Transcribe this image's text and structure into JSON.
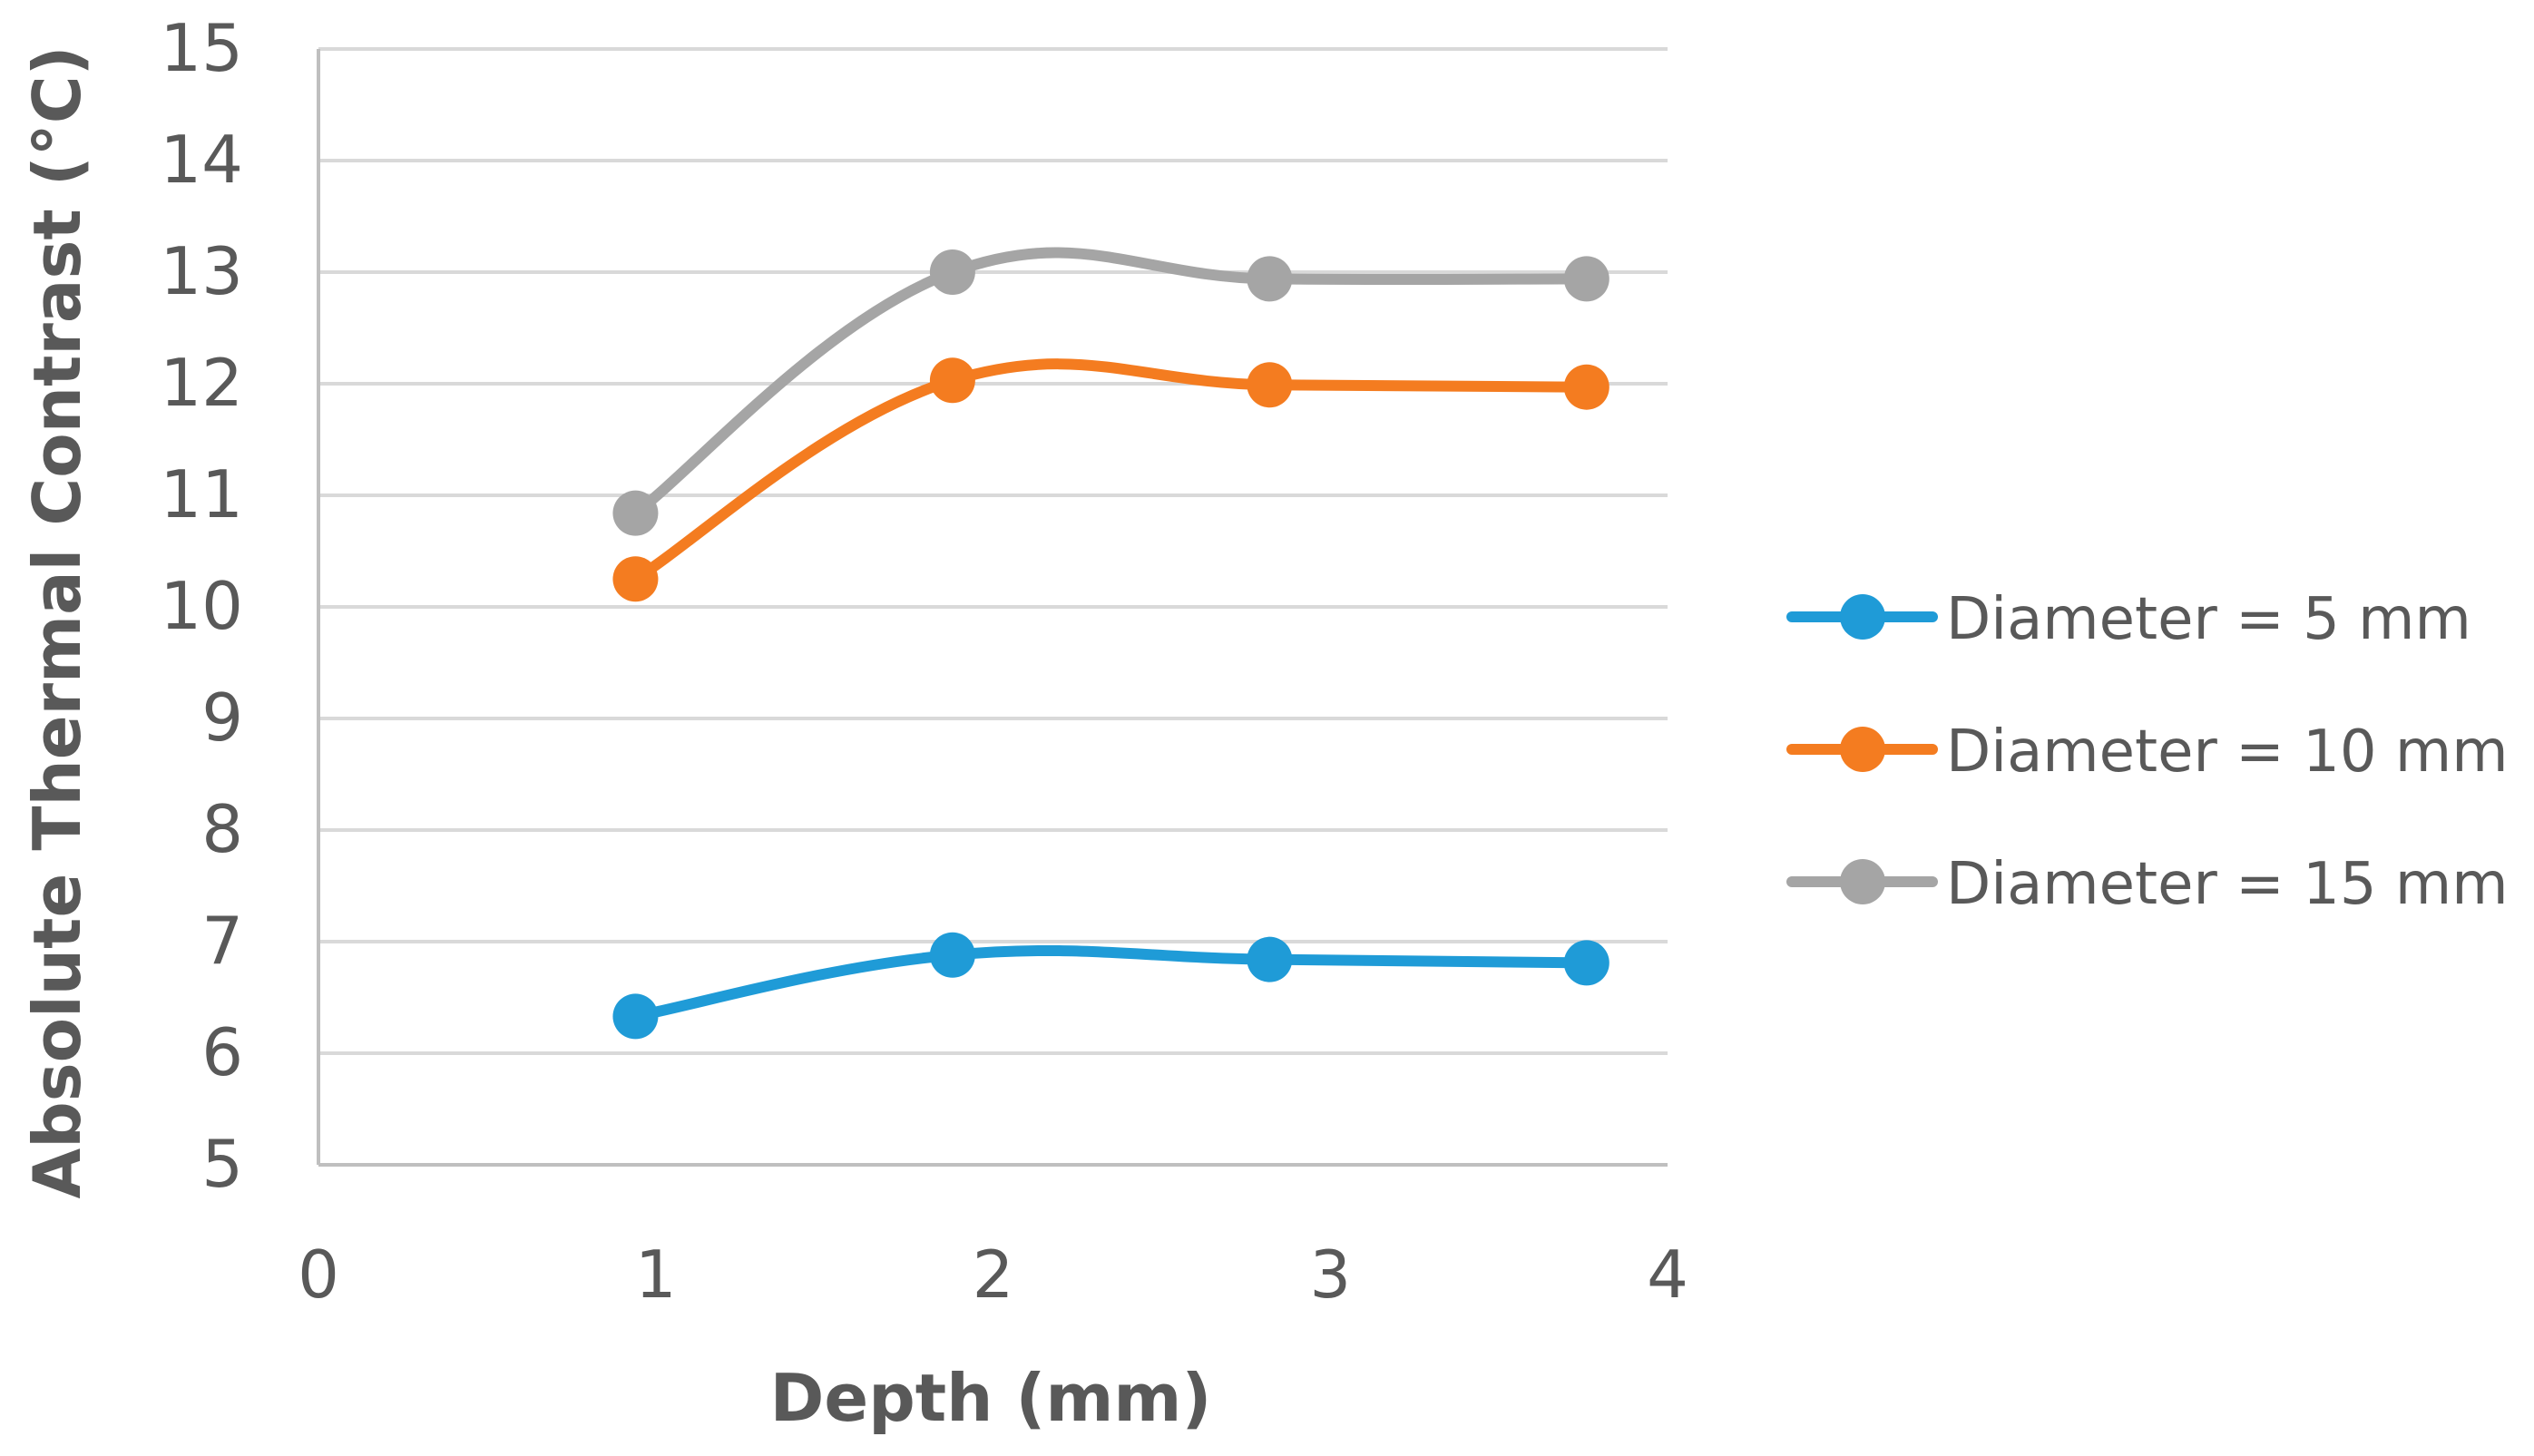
{
  "chart_data": {
    "type": "line",
    "smooth": true,
    "title": "",
    "xlabel": "Depth (mm)",
    "ylabel": "Absolute Thermal Contrast (°C)",
    "xlim": [
      0,
      4
    ],
    "ylim": [
      5,
      15
    ],
    "xticks": [
      "0",
      "1",
      "2",
      "3",
      "4"
    ],
    "yticks": [
      "5",
      "6",
      "7",
      "8",
      "9",
      "10",
      "11",
      "12",
      "13",
      "14",
      "15"
    ],
    "grid": true,
    "legend_position": "right",
    "series": [
      {
        "name": "Diameter = 5 mm",
        "color": "#1f9bd7",
        "x": [
          0.94,
          1.88,
          2.82,
          3.76
        ],
        "y": [
          6.33,
          6.88,
          6.84,
          6.81
        ]
      },
      {
        "name": "Diameter = 10 mm",
        "color": "#f47c20",
        "x": [
          0.94,
          1.88,
          2.82,
          3.76
        ],
        "y": [
          10.25,
          12.03,
          11.99,
          11.97
        ]
      },
      {
        "name": "Diameter = 15 mm",
        "color": "#a5a5a5",
        "x": [
          0.94,
          1.88,
          2.82,
          3.76
        ],
        "y": [
          10.84,
          13.0,
          12.94,
          12.94
        ]
      }
    ]
  }
}
